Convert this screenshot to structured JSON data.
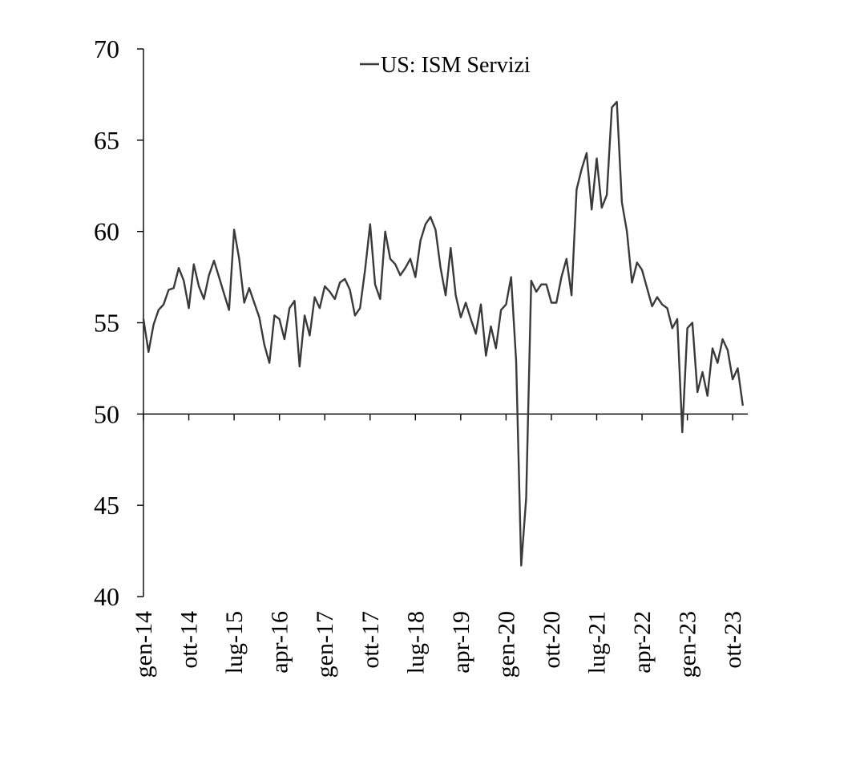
{
  "chart_data": {
    "type": "line",
    "title": "",
    "xlabel": "",
    "ylabel": "",
    "ylim": [
      40,
      70
    ],
    "yticks": [
      40,
      45,
      50,
      55,
      60,
      65,
      70
    ],
    "ytick_labels": [
      "40",
      "45",
      "50",
      "55",
      "60",
      "65",
      "70"
    ],
    "grid": false,
    "legend_position": "top-center",
    "reference_line_y": 50,
    "x_start": "2014-01",
    "x_end": "2024-01",
    "x_ticks": [
      {
        "date": "2014-01",
        "label": "gen-14"
      },
      {
        "date": "2014-10",
        "label": "ott-14"
      },
      {
        "date": "2015-07",
        "label": "lug-15"
      },
      {
        "date": "2016-04",
        "label": "apr-16"
      },
      {
        "date": "2017-01",
        "label": "gen-17"
      },
      {
        "date": "2017-10",
        "label": "ott-17"
      },
      {
        "date": "2018-07",
        "label": "lug-18"
      },
      {
        "date": "2019-04",
        "label": "apr-19"
      },
      {
        "date": "2020-01",
        "label": "gen-20"
      },
      {
        "date": "2020-10",
        "label": "ott-20"
      },
      {
        "date": "2021-07",
        "label": "lug-21"
      },
      {
        "date": "2022-04",
        "label": "apr-22"
      },
      {
        "date": "2023-01",
        "label": "gen-23"
      },
      {
        "date": "2023-10",
        "label": "ott-23"
      }
    ],
    "series": [
      {
        "name": "US: ISM Servizi",
        "color": "#3a3a3a",
        "x": [
          "2014-01",
          "2014-02",
          "2014-03",
          "2014-04",
          "2014-05",
          "2014-06",
          "2014-07",
          "2014-08",
          "2014-09",
          "2014-10",
          "2014-11",
          "2014-12",
          "2015-01",
          "2015-02",
          "2015-03",
          "2015-04",
          "2015-05",
          "2015-06",
          "2015-07",
          "2015-08",
          "2015-09",
          "2015-10",
          "2015-11",
          "2015-12",
          "2016-01",
          "2016-02",
          "2016-03",
          "2016-04",
          "2016-05",
          "2016-06",
          "2016-07",
          "2016-08",
          "2016-09",
          "2016-10",
          "2016-11",
          "2016-12",
          "2017-01",
          "2017-02",
          "2017-03",
          "2017-04",
          "2017-05",
          "2017-06",
          "2017-07",
          "2017-08",
          "2017-09",
          "2017-10",
          "2017-11",
          "2017-12",
          "2018-01",
          "2018-02",
          "2018-03",
          "2018-04",
          "2018-05",
          "2018-06",
          "2018-07",
          "2018-08",
          "2018-09",
          "2018-10",
          "2018-11",
          "2018-12",
          "2019-01",
          "2019-02",
          "2019-03",
          "2019-04",
          "2019-05",
          "2019-06",
          "2019-07",
          "2019-08",
          "2019-09",
          "2019-10",
          "2019-11",
          "2019-12",
          "2020-01",
          "2020-02",
          "2020-03",
          "2020-04",
          "2020-05",
          "2020-06",
          "2020-07",
          "2020-08",
          "2020-09",
          "2020-10",
          "2020-11",
          "2020-12",
          "2021-01",
          "2021-02",
          "2021-03",
          "2021-04",
          "2021-05",
          "2021-06",
          "2021-07",
          "2021-08",
          "2021-09",
          "2021-10",
          "2021-11",
          "2021-12",
          "2022-01",
          "2022-02",
          "2022-03",
          "2022-04",
          "2022-05",
          "2022-06",
          "2022-07",
          "2022-08",
          "2022-09",
          "2022-10",
          "2022-11",
          "2022-12",
          "2023-01",
          "2023-02",
          "2023-03",
          "2023-04",
          "2023-05",
          "2023-06",
          "2023-07",
          "2023-08",
          "2023-09",
          "2023-10",
          "2023-11",
          "2023-12"
        ],
        "values": [
          55.2,
          53.4,
          54.9,
          55.7,
          56.0,
          56.8,
          56.9,
          58.0,
          57.3,
          55.8,
          58.2,
          57.0,
          56.3,
          57.6,
          58.4,
          57.5,
          56.6,
          55.7,
          60.1,
          58.5,
          56.1,
          56.9,
          56.1,
          55.3,
          53.8,
          52.8,
          55.4,
          55.2,
          54.1,
          55.8,
          56.2,
          52.6,
          55.4,
          54.3,
          56.4,
          55.8,
          57.0,
          56.7,
          56.3,
          57.2,
          57.4,
          56.8,
          55.4,
          55.8,
          57.9,
          60.4,
          57.1,
          56.3,
          60.0,
          58.5,
          58.2,
          57.6,
          58.0,
          58.5,
          57.5,
          59.5,
          60.4,
          60.8,
          60.1,
          58.0,
          56.5,
          59.1,
          56.5,
          55.3,
          56.1,
          55.2,
          54.4,
          56.0,
          53.2,
          54.8,
          53.6,
          55.7,
          56.0,
          57.5,
          52.9,
          41.7,
          45.4,
          57.3,
          56.7,
          57.1,
          57.1,
          56.1,
          56.1,
          57.5,
          58.5,
          56.5,
          62.3,
          63.4,
          64.3,
          61.2,
          64.0,
          61.3,
          62.0,
          66.8,
          67.1,
          61.6,
          60.0,
          57.2,
          58.3,
          57.9,
          56.9,
          55.9,
          56.4,
          56.0,
          55.8,
          54.7,
          55.2,
          49.0,
          54.7,
          55.0,
          51.2,
          52.3,
          51.0,
          53.6,
          52.8,
          54.1,
          53.5,
          51.9,
          52.5,
          50.5
        ]
      }
    ]
  }
}
